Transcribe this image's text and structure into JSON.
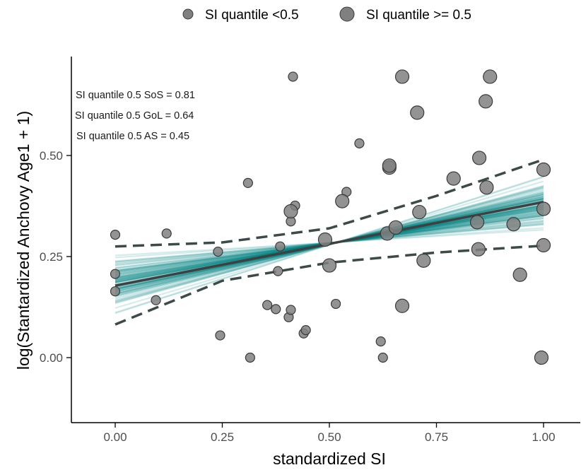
{
  "chart_data": {
    "type": "scatter",
    "xlabel": "standardized SI",
    "ylabel": "log(Stantardized Anchovy Age1 + 1)",
    "xlim": [
      -0.1,
      1.08
    ],
    "ylim": [
      -0.16,
      0.74
    ],
    "x_ticks": [
      0.0,
      0.25,
      0.5,
      0.75,
      1.0
    ],
    "x_tick_labels": [
      "0.00",
      "0.25",
      "0.50",
      "0.75",
      "1.00"
    ],
    "y_ticks": [
      0.0,
      0.25,
      0.5
    ],
    "y_tick_labels": [
      "0.00",
      "0.25",
      "0.50"
    ],
    "grid": false,
    "legend_position": "top",
    "legend": [
      {
        "label": "SI quantile <0.5",
        "size": "small"
      },
      {
        "label": "SI quantile >= 0.5",
        "size": "large"
      }
    ],
    "annotations": [
      "SI quantile 0.5 SoS = 0.81",
      "SI quantile 0.5 GoL = 0.64",
      "SI quantile 0.5 AS = 0.45"
    ],
    "fit": {
      "mean_line": {
        "x": [
          0.0,
          1.0
        ],
        "y": [
          0.178,
          0.385
        ]
      },
      "ci_upper": {
        "x": [
          0.0,
          0.25,
          0.5,
          0.75,
          1.0
        ],
        "y": [
          0.275,
          0.285,
          0.32,
          0.4,
          0.49
        ]
      },
      "ci_lower": {
        "x": [
          0.0,
          0.25,
          0.5,
          0.75,
          1.0
        ],
        "y": [
          0.082,
          0.19,
          0.235,
          0.26,
          0.277
        ]
      },
      "spaghetti_count": 100
    },
    "colors": {
      "posterior": "#008080",
      "points": "#808080",
      "point_stroke": "#3a3a3a",
      "line": "#404040"
    },
    "series": [
      {
        "name": "SI quantile <0.5",
        "x": [
          0.0,
          0.0,
          0.0,
          0.095,
          0.12,
          0.24,
          0.245,
          0.315,
          0.31,
          0.355,
          0.375,
          0.38,
          0.385,
          0.405,
          0.41,
          0.41,
          0.415,
          0.42,
          0.44,
          0.445,
          0.515,
          0.54,
          0.57,
          0.62,
          0.625
        ],
        "y": [
          0.304,
          0.207,
          0.164,
          0.142,
          0.307,
          0.262,
          0.055,
          0.0,
          0.432,
          0.13,
          0.12,
          0.214,
          0.275,
          0.1,
          0.118,
          0.337,
          0.695,
          0.376,
          0.06,
          0.068,
          0.133,
          0.41,
          0.53,
          0.04,
          0.0
        ]
      },
      {
        "name": "SI quantile >= 0.5",
        "x": [
          0.41,
          0.49,
          0.5,
          0.53,
          0.635,
          0.64,
          0.64,
          0.655,
          0.67,
          0.67,
          0.705,
          0.71,
          0.72,
          0.79,
          0.845,
          0.848,
          0.85,
          0.865,
          0.867,
          0.875,
          0.93,
          0.945,
          0.995,
          1.0,
          1.0,
          1.0
        ],
        "y": [
          0.362,
          0.292,
          0.228,
          0.387,
          0.307,
          0.47,
          0.475,
          0.322,
          0.695,
          0.128,
          0.606,
          0.36,
          0.24,
          0.443,
          0.335,
          0.268,
          0.494,
          0.634,
          0.421,
          0.695,
          0.33,
          0.205,
          0.0,
          0.465,
          0.368,
          0.278
        ]
      }
    ]
  }
}
